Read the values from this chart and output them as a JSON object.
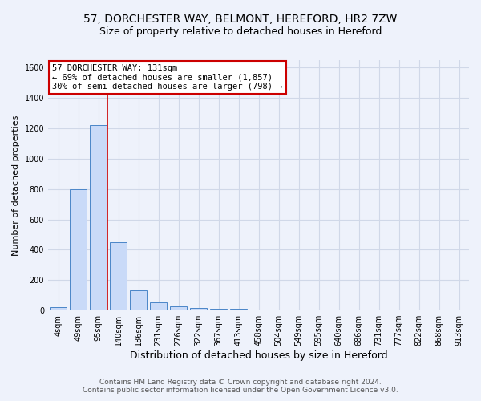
{
  "title": "57, DORCHESTER WAY, BELMONT, HEREFORD, HR2 7ZW",
  "subtitle": "Size of property relative to detached houses in Hereford",
  "xlabel": "Distribution of detached houses by size in Hereford",
  "ylabel": "Number of detached properties",
  "bar_labels": [
    "4sqm",
    "49sqm",
    "95sqm",
    "140sqm",
    "186sqm",
    "231sqm",
    "276sqm",
    "322sqm",
    "367sqm",
    "413sqm",
    "458sqm",
    "504sqm",
    "549sqm",
    "595sqm",
    "640sqm",
    "686sqm",
    "731sqm",
    "777sqm",
    "822sqm",
    "868sqm",
    "913sqm"
  ],
  "bar_values": [
    22,
    800,
    1220,
    450,
    130,
    55,
    25,
    15,
    10,
    10,
    5,
    0,
    0,
    0,
    0,
    0,
    0,
    0,
    0,
    0,
    0
  ],
  "bar_color": "#c9daf8",
  "bar_edge_color": "#4a86c8",
  "grid_color": "#d0d8e8",
  "background_color": "#eef2fb",
  "vline_color": "#cc0000",
  "annotation_text": "57 DORCHESTER WAY: 131sqm\n← 69% of detached houses are smaller (1,857)\n30% of semi-detached houses are larger (798) →",
  "annotation_box_color": "#ffffff",
  "annotation_box_edge": "#cc0000",
  "ylim": [
    0,
    1650
  ],
  "yticks": [
    0,
    200,
    400,
    600,
    800,
    1000,
    1200,
    1400,
    1600
  ],
  "footer_line1": "Contains HM Land Registry data © Crown copyright and database right 2024.",
  "footer_line2": "Contains public sector information licensed under the Open Government Licence v3.0.",
  "title_fontsize": 10,
  "subtitle_fontsize": 9,
  "xlabel_fontsize": 9,
  "ylabel_fontsize": 8,
  "tick_fontsize": 7,
  "footer_fontsize": 6.5,
  "ann_fontsize": 7.5
}
